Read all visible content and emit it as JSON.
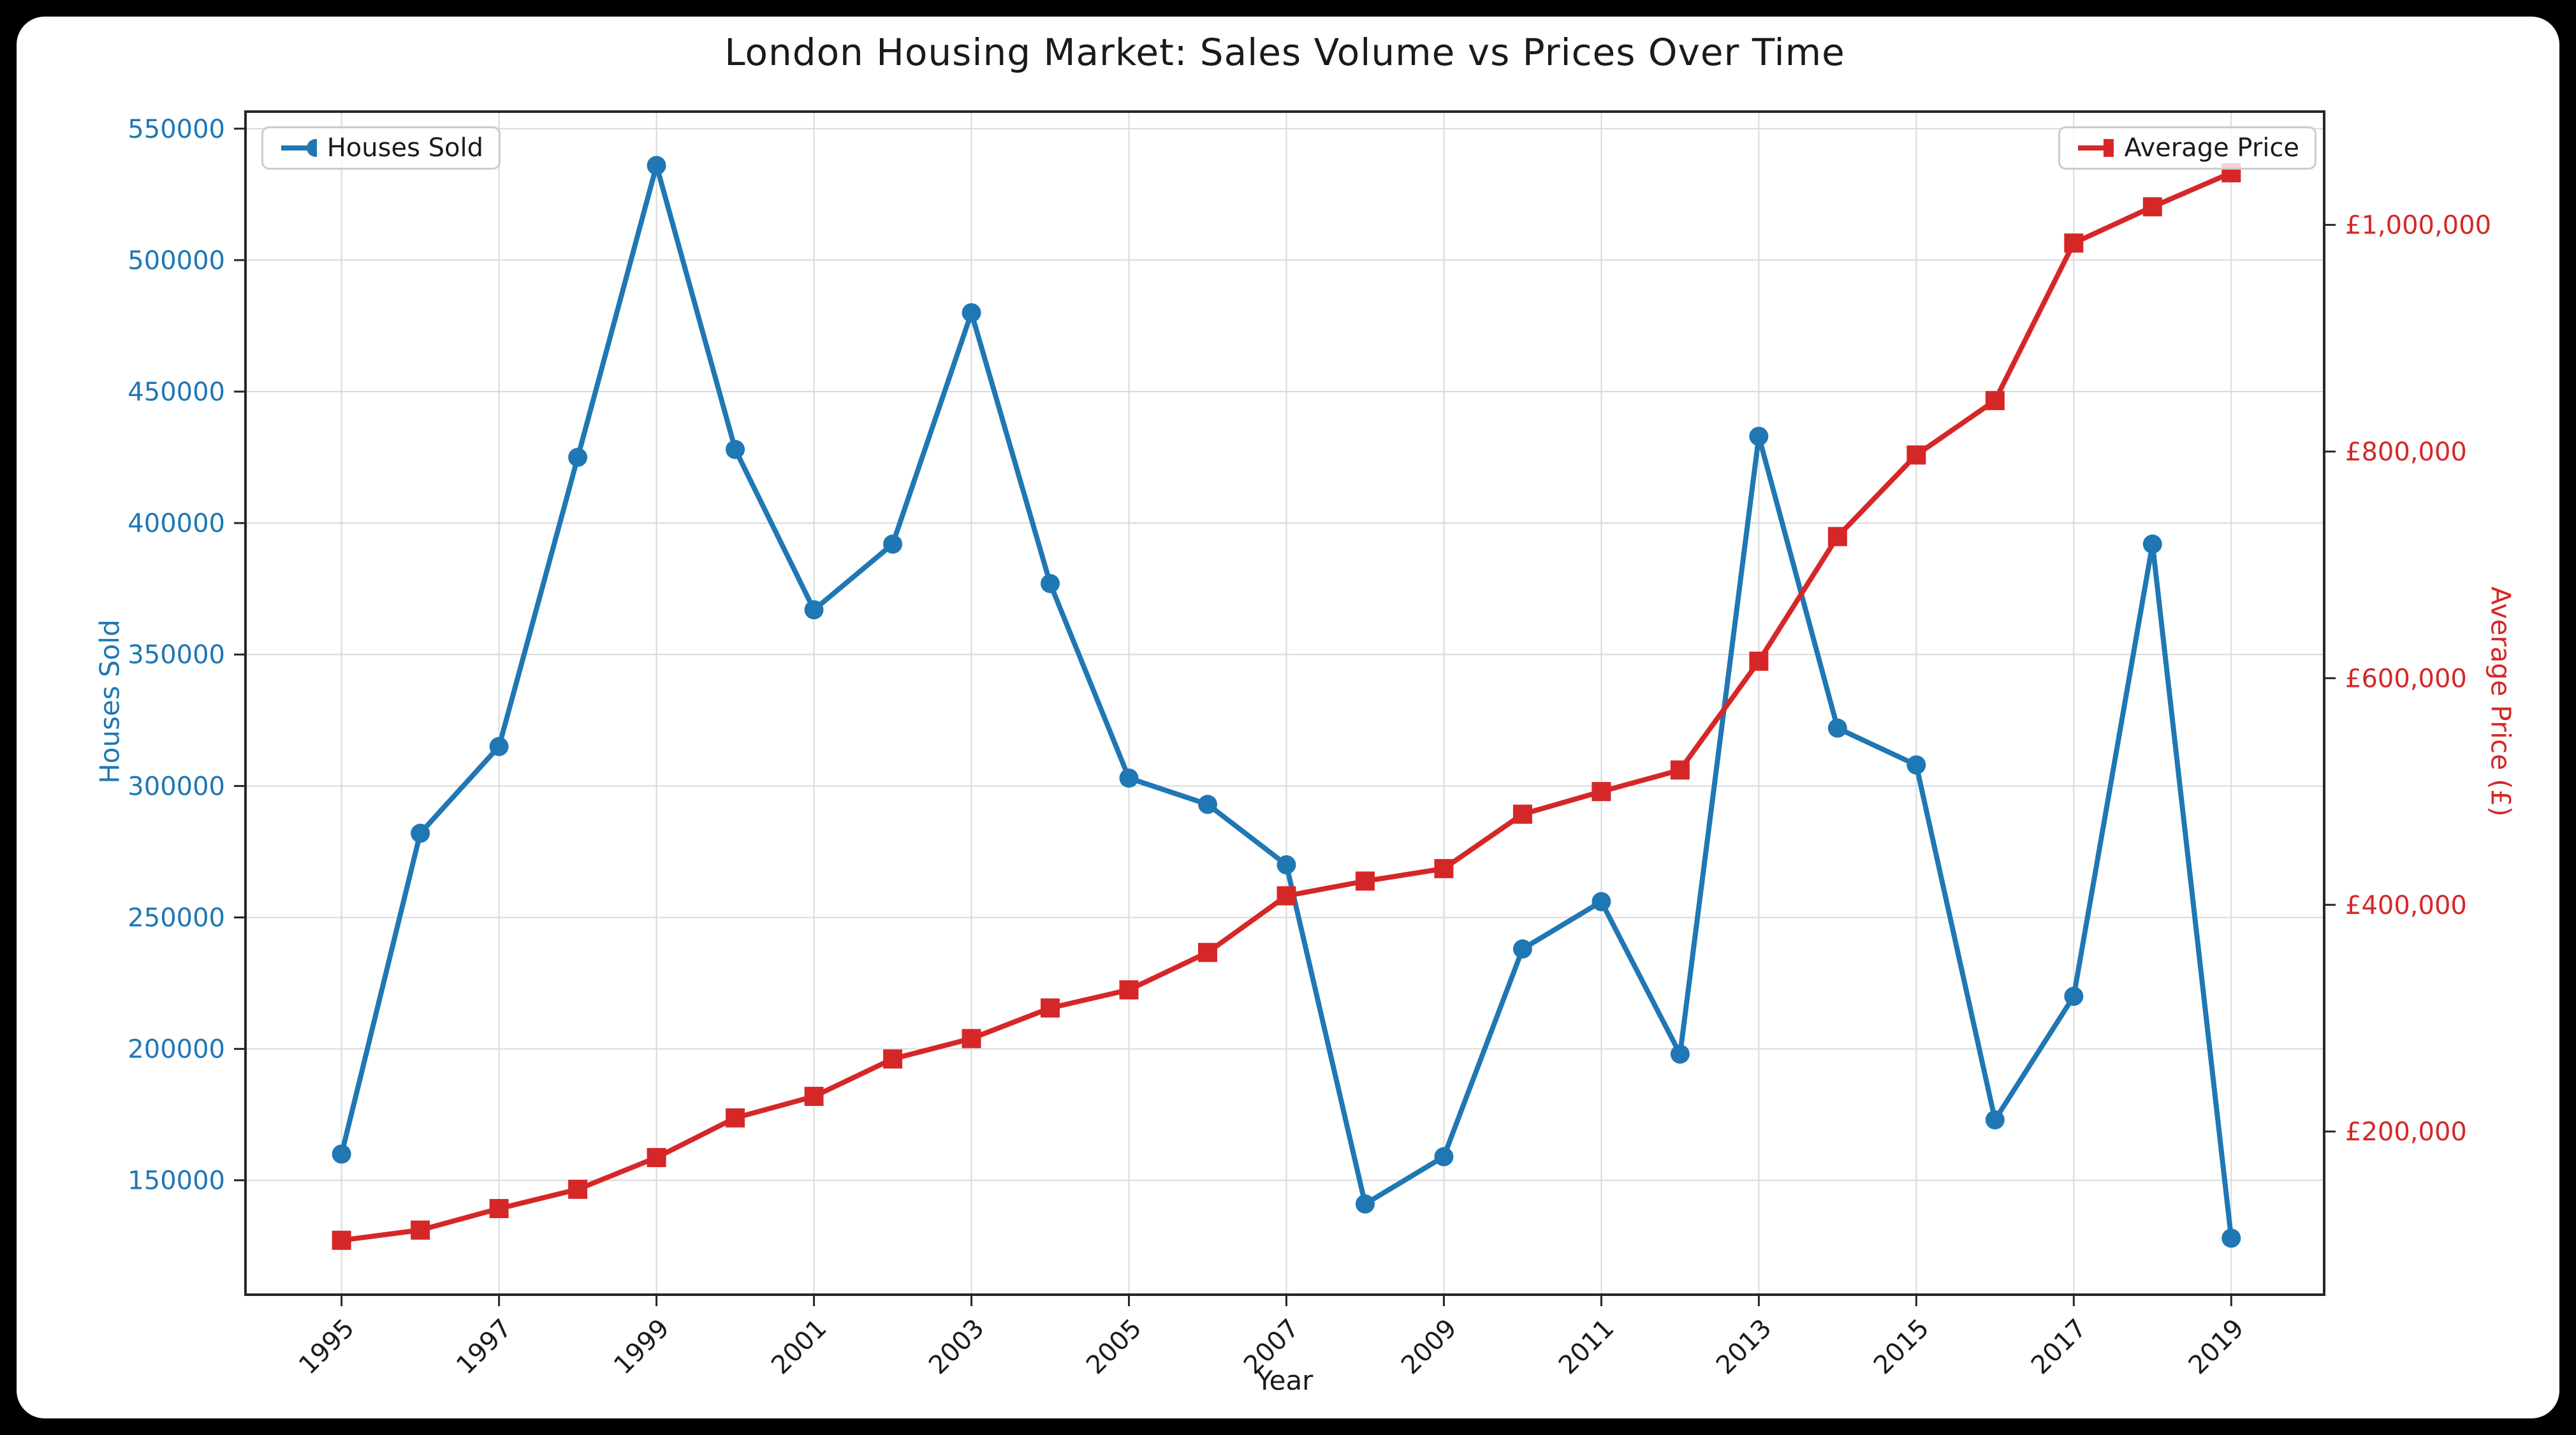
{
  "window": {
    "background": "#000000",
    "card_background": "#ffffff",
    "grid_color": "#d9d9d9",
    "spine_color": "#262626"
  },
  "chart_data": {
    "type": "line",
    "title": "London Housing Market: Sales Volume vs Prices Over Time",
    "xlabel": "Year",
    "grid": true,
    "x": [
      1995,
      1996,
      1997,
      1998,
      1999,
      2000,
      2001,
      2002,
      2003,
      2004,
      2005,
      2006,
      2007,
      2008,
      2009,
      2010,
      2011,
      2012,
      2013,
      2014,
      2015,
      2016,
      2017,
      2018,
      2019
    ],
    "x_ticks": [
      1995,
      1997,
      1999,
      2001,
      2003,
      2005,
      2007,
      2009,
      2011,
      2013,
      2015,
      2017,
      2019
    ],
    "x_range": [
      1993.78,
      2020.18
    ],
    "series": [
      {
        "name": "Houses Sold",
        "axis": "left",
        "color": "#1f77b4",
        "marker": "circle",
        "values": [
          160000,
          282000,
          315000,
          425000,
          536000,
          428000,
          367000,
          392000,
          480000,
          377000,
          303000,
          293000,
          270000,
          141000,
          159000,
          238000,
          256000,
          198000,
          433000,
          322000,
          308000,
          173000,
          220000,
          392000,
          128000
        ]
      },
      {
        "name": "Average Price",
        "axis": "right",
        "color": "#d62728",
        "marker": "square",
        "values": [
          104000,
          113000,
          132000,
          149000,
          177000,
          212000,
          231000,
          264000,
          282000,
          309000,
          325000,
          358000,
          408000,
          421000,
          432000,
          480000,
          500000,
          519000,
          615000,
          725000,
          797000,
          845000,
          984000,
          1016000,
          1046000
        ]
      }
    ],
    "left_axis": {
      "label": "Houses Sold",
      "color": "#1f77b4",
      "ticks": [
        150000,
        200000,
        250000,
        300000,
        350000,
        400000,
        450000,
        500000,
        550000
      ],
      "range": [
        106500,
        556500
      ]
    },
    "right_axis": {
      "label": "Average Price (£)",
      "color": "#d62728",
      "ticks": [
        200000,
        400000,
        600000,
        800000,
        1000000
      ],
      "tick_labels": [
        "£200,000",
        "£400,000",
        "£600,000",
        "£800,000",
        "£1,000,000"
      ],
      "range": [
        56000,
        1100000
      ]
    },
    "legend": [
      {
        "label": "Houses Sold",
        "position": "upper left",
        "marker": "circle",
        "color": "#1f77b4"
      },
      {
        "label": "Average Price",
        "position": "upper right",
        "marker": "square",
        "color": "#d62728"
      }
    ]
  }
}
